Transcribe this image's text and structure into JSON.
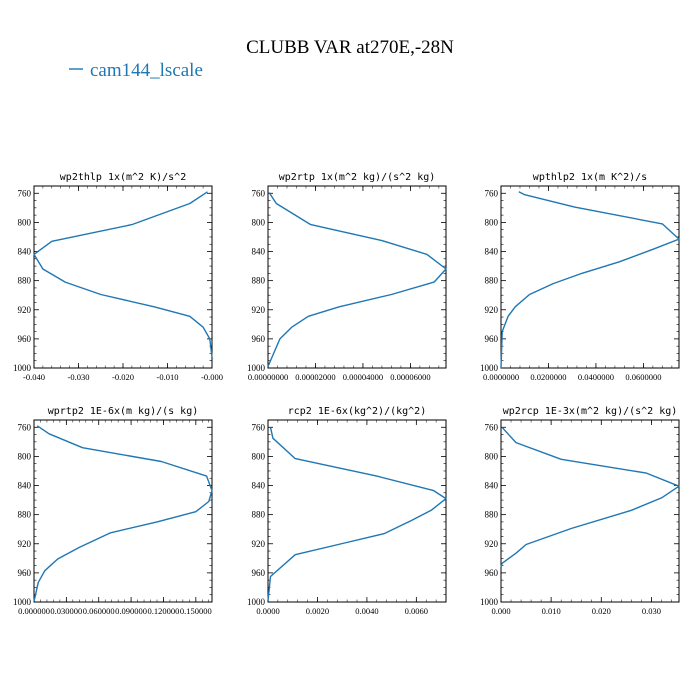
{
  "figure": {
    "title": "CLUBB VAR at270E,-28N",
    "legend": {
      "label": "cam144_lscale",
      "color": "#1f77b4"
    }
  },
  "chart_data": [
    {
      "type": "line",
      "title": "wp2thlp  1x(m^2 K)/s^2",
      "xlim": [
        -0.04,
        0.0
      ],
      "ylim": [
        1000,
        750
      ],
      "xticks": [
        -0.04,
        -0.03,
        -0.02,
        -0.01,
        0.0
      ],
      "xtick_labels": [
        "-0.040",
        "-0.030",
        "-0.020",
        "-0.010",
        "-0.000"
      ],
      "yticks": [
        760,
        800,
        840,
        880,
        920,
        960,
        1000
      ],
      "series": [
        {
          "x": [
            -0.001,
            -0.005,
            -0.018,
            -0.036,
            -0.04,
            -0.038,
            -0.033,
            -0.025,
            -0.013,
            -0.005,
            -0.002,
            -0.0005,
            0.0
          ],
          "y": [
            758,
            774,
            803,
            826,
            844,
            864,
            882,
            899,
            916,
            929,
            944,
            960,
            985
          ]
        }
      ]
    },
    {
      "type": "line",
      "title": "wp2rtp  1x(m^2 kg)/(s^2 kg)",
      "xlim": [
        0.0,
        7.5e-05
      ],
      "ylim": [
        1000,
        750
      ],
      "xticks": [
        0.0,
        2e-05,
        4e-05,
        6e-05
      ],
      "xtick_labels": [
        "0.00000000",
        "0.00002000",
        "0.00004000",
        "0.00006000"
      ],
      "yticks": [
        760,
        800,
        840,
        880,
        920,
        960,
        1000
      ],
      "series": [
        {
          "x": [
            5e-07,
            3.5e-06,
            1.8e-05,
            4.8e-05,
            6.7e-05,
            7.5e-05,
            7e-05,
            5.2e-05,
            3e-05,
            1.7e-05,
            1e-05,
            5e-06,
            0.0
          ],
          "y": [
            759,
            774,
            803,
            825,
            844,
            864,
            882,
            899,
            916,
            929,
            944,
            960,
            998
          ]
        }
      ]
    },
    {
      "type": "line",
      "title": "wpthlp2  1x(m K^2)/s",
      "xlim": [
        0.0,
        0.075
      ],
      "ylim": [
        1000,
        750
      ],
      "xticks": [
        0.0,
        0.02,
        0.04,
        0.06
      ],
      "xtick_labels": [
        "0.0000000",
        "0.0200000",
        "0.0400000",
        "0.0600000"
      ],
      "yticks": [
        760,
        800,
        840,
        880,
        920,
        960,
        1000
      ],
      "series": [
        {
          "x": [
            0.0075,
            0.01,
            0.031,
            0.068,
            0.075,
            0.064,
            0.05,
            0.034,
            0.022,
            0.012,
            0.006,
            0.003,
            0.0005,
            0.0
          ],
          "y": [
            758,
            762,
            779,
            802,
            823,
            837,
            854,
            870,
            884,
            899,
            916,
            929,
            950,
            1000
          ]
        }
      ]
    },
    {
      "type": "line",
      "title": "wprtp2  1E-6x(m kg)/(s kg)",
      "xlim": [
        0.0,
        0.165
      ],
      "ylim": [
        1000,
        750
      ],
      "xticks": [
        0.0,
        0.03,
        0.06,
        0.09,
        0.12,
        0.15
      ],
      "xtick_labels": [
        "0.000000",
        "0.030000",
        "0.060000",
        "0.090000",
        "0.120000",
        "0.150000"
      ],
      "yticks": [
        760,
        800,
        840,
        880,
        920,
        960,
        1000
      ],
      "series": [
        {
          "x": [
            0.003,
            0.014,
            0.045,
            0.118,
            0.16,
            0.165,
            0.162,
            0.15,
            0.114,
            0.071,
            0.042,
            0.022,
            0.01,
            0.004,
            0.0
          ],
          "y": [
            758,
            769,
            788,
            807,
            827,
            847,
            862,
            876,
            890,
            905,
            925,
            941,
            957,
            973,
            999
          ]
        }
      ]
    },
    {
      "type": "line",
      "title": "rcp2  1E-6x(kg^2)/(kg^2)",
      "xlim": [
        0.0,
        0.0072
      ],
      "ylim": [
        1000,
        750
      ],
      "xticks": [
        0.0,
        0.002,
        0.004,
        0.006
      ],
      "xtick_labels": [
        "0.0000",
        "0.0020",
        "0.0040",
        "0.0060"
      ],
      "yticks": [
        760,
        800,
        840,
        880,
        920,
        960,
        1000
      ],
      "series": [
        {
          "x": [
            0.0001,
            0.0002,
            0.0011,
            0.0044,
            0.0067,
            0.0072,
            0.0066,
            0.0058,
            0.0047,
            0.0031,
            0.0011,
            0.0001,
            0.0
          ],
          "y": [
            760,
            775,
            803,
            827,
            847,
            858,
            874,
            888,
            906,
            919,
            935,
            965,
            998
          ]
        }
      ]
    },
    {
      "type": "line",
      "title": "wp2rcp  1E-3x(m^2 kg)/(s^2 kg)",
      "xlim": [
        0.0,
        0.0355
      ],
      "ylim": [
        1000,
        750
      ],
      "xticks": [
        0.0,
        0.01,
        0.02,
        0.03
      ],
      "xtick_labels": [
        "0.000",
        "0.010",
        "0.020",
        "0.030"
      ],
      "yticks": [
        760,
        800,
        840,
        880,
        920,
        960,
        1000
      ],
      "series": [
        {
          "x": [
            0.0002,
            0.003,
            0.012,
            0.029,
            0.0355,
            0.032,
            0.026,
            0.014,
            0.005,
            0.003,
            0.0002,
            0.0
          ],
          "y": [
            760,
            781,
            804,
            823,
            841,
            857,
            874,
            899,
            921,
            933,
            947,
            952
          ]
        }
      ]
    }
  ]
}
